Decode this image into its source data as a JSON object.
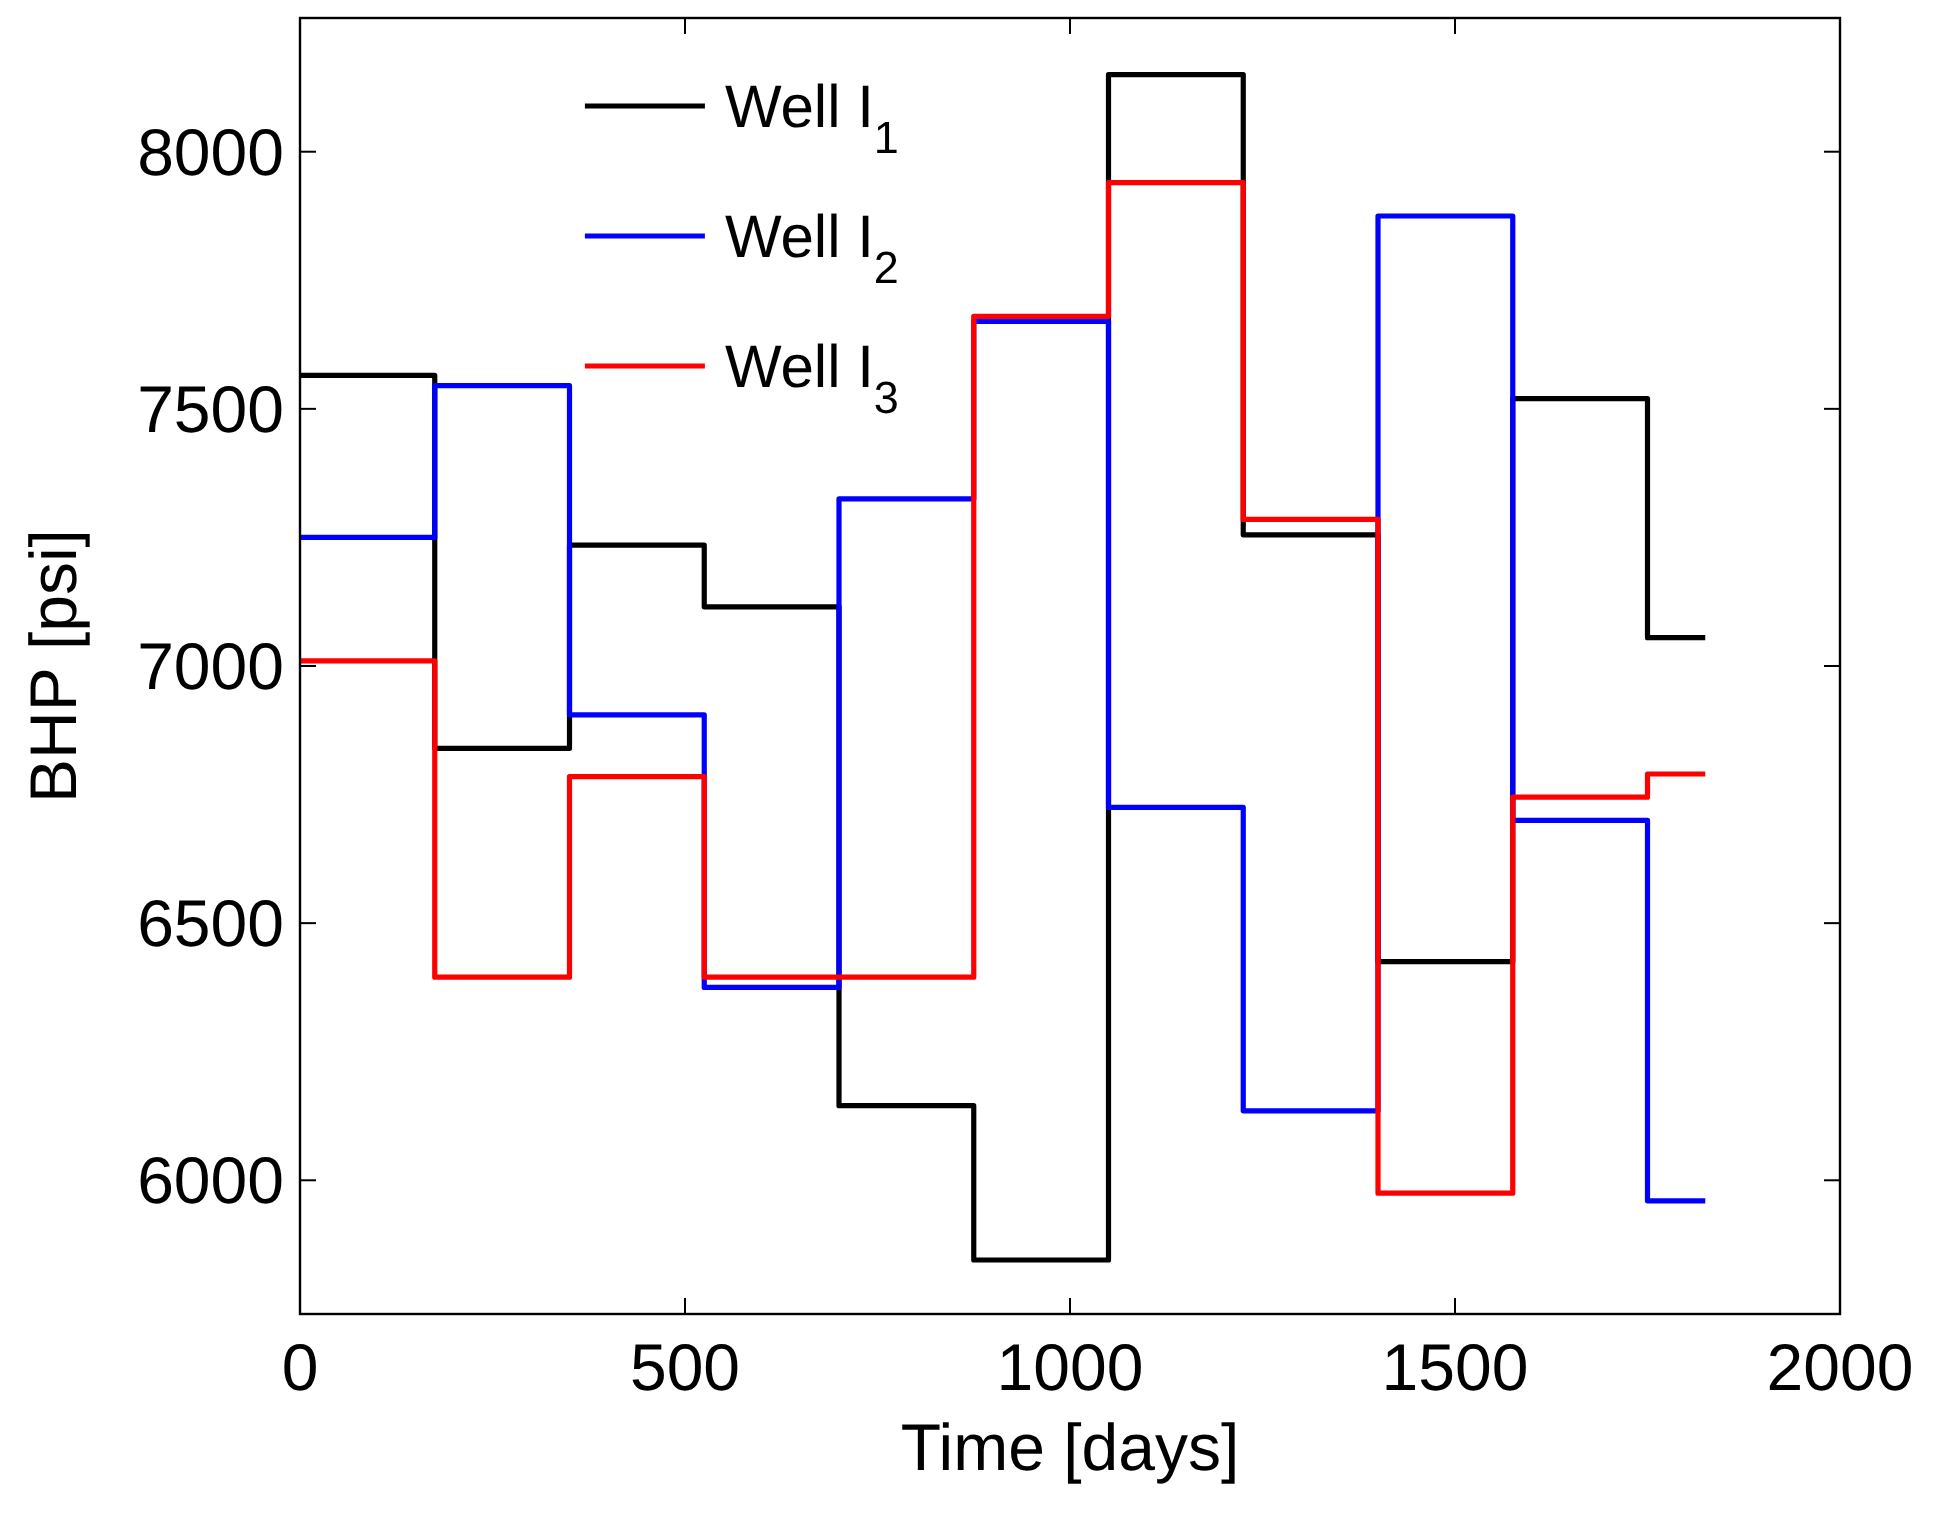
{
  "chart_data": {
    "type": "step",
    "xlabel": "Time [days]",
    "ylabel": "BHP [psi]",
    "x": [
      0,
      175,
      350,
      525,
      700,
      875,
      1050,
      1225,
      1400,
      1575,
      1750,
      1825
    ],
    "series": [
      {
        "name": "Well I$_{1}$",
        "color": "#000000",
        "values": [
          7565,
          6840,
          7235,
          7115,
          6145,
          5845,
          8150,
          7255,
          6425,
          7520,
          7055,
          7055
        ]
      },
      {
        "name": "Well I$_{2}$",
        "color": "#0000ff",
        "values": [
          7250,
          7545,
          6905,
          6375,
          7325,
          7670,
          6725,
          6135,
          7875,
          6700,
          5960,
          5960
        ]
      },
      {
        "name": "Well I$_{3}$",
        "color": "#ff0000",
        "values": [
          7010,
          6395,
          6785,
          6395,
          6395,
          7680,
          7940,
          7285,
          5975,
          6745,
          6790,
          6790
        ]
      }
    ],
    "xlim": [
      0,
      2000
    ],
    "xticks": [
      0,
      500,
      1000,
      1500,
      2000
    ],
    "ylim": [
      5740,
      8260
    ],
    "yticks": [
      6000,
      6500,
      7000,
      7500,
      8000
    ],
    "legend": "top",
    "grid": false
  }
}
